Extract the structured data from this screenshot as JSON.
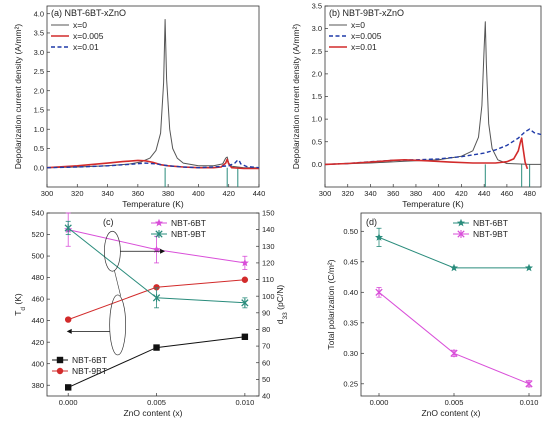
{
  "panels": [
    {
      "id": "a",
      "type": "line",
      "label": "(a) NBT-6BT-xZnO",
      "xlabel": "Temperature (K)",
      "ylabel": "Depolarization current density (A/mm²)",
      "xlim": [
        300,
        440
      ],
      "ylim": [
        -0.5,
        4.2
      ],
      "xticks": [
        300,
        320,
        340,
        360,
        380,
        400,
        420,
        440
      ],
      "yticks": [
        0.0,
        0.5,
        1.0,
        1.5,
        2.0,
        2.5,
        3.0,
        3.5,
        4.0
      ],
      "yticklabels": [
        "0.0",
        "0.5",
        "1.0",
        "1.5",
        "2.0",
        "2.5",
        "3.0",
        "3.5",
        "4.0"
      ],
      "legend_position": "top-left",
      "vlines": [
        {
          "x": 378,
          "color": "#2a8c7c"
        },
        {
          "x": 419,
          "color": "#2a8c7c"
        },
        {
          "x": 426,
          "color": "#2a8c7c"
        }
      ],
      "series": [
        {
          "name": "x=0",
          "color": "#555555",
          "style": "solid",
          "width": 1,
          "x": [
            300,
            320,
            340,
            355,
            362,
            368,
            372,
            375,
            377,
            378,
            379,
            381,
            383,
            386,
            390,
            400,
            410,
            416,
            418,
            419,
            420,
            422,
            430,
            440
          ],
          "y": [
            0.0,
            0.02,
            0.05,
            0.1,
            0.15,
            0.25,
            0.45,
            0.9,
            2.2,
            3.85,
            2.3,
            1.0,
            0.5,
            0.25,
            0.12,
            0.05,
            0.05,
            0.1,
            0.25,
            0.28,
            0.12,
            0.04,
            0.0,
            0.0
          ]
        },
        {
          "name": "x=0.005",
          "color": "#d22b2b",
          "style": "solid",
          "width": 1.6,
          "x": [
            300,
            320,
            340,
            350,
            360,
            365,
            370,
            375,
            380,
            390,
            400,
            410,
            415,
            418,
            419,
            420,
            422,
            430,
            440
          ],
          "y": [
            0.0,
            0.05,
            0.12,
            0.16,
            0.19,
            0.18,
            0.14,
            0.08,
            0.05,
            0.02,
            0.0,
            0.0,
            0.02,
            0.12,
            0.22,
            0.1,
            0.0,
            -0.02,
            -0.02
          ]
        },
        {
          "name": "x=0.01",
          "color": "#1f3aa8",
          "style": "dashed",
          "width": 1.4,
          "x": [
            300,
            320,
            340,
            355,
            365,
            372,
            380,
            390,
            400,
            410,
            420,
            424,
            426,
            427,
            428,
            432,
            440
          ],
          "y": [
            0.0,
            0.02,
            0.05,
            0.09,
            0.12,
            0.1,
            0.05,
            0.02,
            0.0,
            0.02,
            0.05,
            0.12,
            0.2,
            0.18,
            0.1,
            0.03,
            0.0
          ]
        }
      ]
    },
    {
      "id": "b",
      "type": "line",
      "label": "(b) NBT-9BT-xZnO",
      "xlabel": "Temperature (K)",
      "ylabel": "Depolarization current density (A/mm²)",
      "xlim": [
        300,
        490
      ],
      "ylim": [
        -0.5,
        3.5
      ],
      "xticks": [
        300,
        320,
        340,
        360,
        380,
        400,
        420,
        440,
        460,
        480
      ],
      "yticks": [
        0.0,
        0.5,
        1.0,
        1.5,
        2.0,
        2.5,
        3.0,
        3.5
      ],
      "yticklabels": [
        "0.0",
        "0.5",
        "1.0",
        "1.5",
        "2.0",
        "2.5",
        "3.0",
        "3.5"
      ],
      "legend_position": "top-left",
      "vlines": [
        {
          "x": 441,
          "color": "#2a8c7c"
        },
        {
          "x": 473,
          "color": "#2a8c7c"
        },
        {
          "x": 480,
          "color": "#2a8c7c"
        }
      ],
      "series": [
        {
          "name": "x=0",
          "color": "#555555",
          "style": "solid",
          "width": 1,
          "x": [
            300,
            340,
            370,
            400,
            420,
            430,
            435,
            438,
            440,
            441,
            442,
            444,
            447,
            452,
            460,
            480,
            490
          ],
          "y": [
            0.0,
            0.03,
            0.07,
            0.1,
            0.18,
            0.3,
            0.6,
            1.3,
            2.6,
            3.15,
            2.2,
            0.9,
            0.35,
            0.1,
            0.02,
            0.0,
            0.0
          ]
        },
        {
          "name": "x=0.005",
          "color": "#1f3aa8",
          "style": "dashed",
          "width": 1.4,
          "x": [
            300,
            320,
            340,
            360,
            380,
            400,
            420,
            440,
            450,
            460,
            470,
            476,
            480,
            484,
            490
          ],
          "y": [
            0.0,
            0.02,
            0.06,
            0.09,
            0.1,
            0.12,
            0.17,
            0.25,
            0.32,
            0.42,
            0.58,
            0.72,
            0.78,
            0.7,
            0.66
          ]
        },
        {
          "name": "x=0.01",
          "color": "#d22b2b",
          "style": "solid",
          "width": 1.6,
          "x": [
            300,
            320,
            340,
            360,
            370,
            390,
            410,
            430,
            450,
            460,
            466,
            470,
            472,
            473,
            474,
            476,
            478
          ],
          "y": [
            0.0,
            0.02,
            0.05,
            0.09,
            0.1,
            0.08,
            0.05,
            0.03,
            0.03,
            0.06,
            0.12,
            0.3,
            0.5,
            0.58,
            0.4,
            0.05,
            -0.1
          ]
        }
      ]
    },
    {
      "id": "c",
      "type": "scatter-line",
      "label": "(c)",
      "xlabel": "ZnO content (x)",
      "ylabel_left": "T",
      "ylabel_left_sub": "d",
      "ylabel_left_unit": "(K)",
      "ylabel_right": "d",
      "ylabel_right_sub": "33",
      "ylabel_right_unit": "(pC/N)",
      "xlim": [
        -0.0012,
        0.0108
      ],
      "xticks": [
        0.0,
        0.005,
        0.01
      ],
      "xticklabels": [
        "0.000",
        "0.005",
        "0.010"
      ],
      "ylim_left": [
        370,
        540
      ],
      "yticks_left": [
        380,
        400,
        420,
        440,
        460,
        480,
        500,
        520,
        540
      ],
      "ylim_right": [
        40,
        150
      ],
      "yticks_right": [
        40,
        50,
        60,
        70,
        80,
        90,
        100,
        110,
        120,
        130,
        140,
        150
      ],
      "legend_top_position": "top-right",
      "legend_bottom_position": "bottom-left",
      "left_series": [
        {
          "name": "NBT-6BT",
          "color": "#111111",
          "marker": "square",
          "x": [
            0.0,
            0.005,
            0.01
          ],
          "y": [
            378,
            415,
            425
          ]
        },
        {
          "name": "NBT-9BT",
          "color": "#d22b2b",
          "marker": "circle",
          "x": [
            0.0,
            0.005,
            0.01
          ],
          "y": [
            441,
            471,
            478
          ]
        }
      ],
      "right_series": [
        {
          "name": "NBT-6BT",
          "color": "#d94fd9",
          "marker": "star",
          "x": [
            0.0,
            0.005,
            0.01
          ],
          "y": [
            140,
            128,
            120
          ],
          "err": [
            10,
            8,
            4
          ]
        },
        {
          "name": "NBT-9BT",
          "color": "#2a8c7c",
          "marker": "cross",
          "x": [
            0.0,
            0.005,
            0.01
          ],
          "y": [
            141,
            99,
            96
          ],
          "err": [
            4,
            6,
            3
          ]
        }
      ]
    },
    {
      "id": "d",
      "type": "scatter-line",
      "label": "(d)",
      "xlabel": "ZnO content (x)",
      "ylabel": "Total polarization (C/m²)",
      "xlim": [
        -0.0012,
        0.0108
      ],
      "xticks": [
        0.0,
        0.005,
        0.01
      ],
      "xticklabels": [
        "0.000",
        "0.005",
        "0.010"
      ],
      "ylim": [
        0.23,
        0.53
      ],
      "yticks": [
        0.25,
        0.3,
        0.35,
        0.4,
        0.45,
        0.5
      ],
      "yticklabels": [
        "0.25",
        "0.30",
        "0.35",
        "0.40",
        "0.45",
        "0.50"
      ],
      "legend_position": "top-right",
      "series": [
        {
          "name": "NBT-6BT",
          "color": "#2a8c7c",
          "marker": "star",
          "x": [
            0.0,
            0.005,
            0.01
          ],
          "y": [
            0.49,
            0.44,
            0.44
          ],
          "err": [
            0.015,
            0,
            0
          ]
        },
        {
          "name": "NBT-9BT",
          "color": "#d94fd9",
          "marker": "cross",
          "x": [
            0.0,
            0.005,
            0.01
          ],
          "y": [
            0.4,
            0.3,
            0.25
          ],
          "err": [
            0.008,
            0.005,
            0.005
          ]
        }
      ]
    }
  ]
}
